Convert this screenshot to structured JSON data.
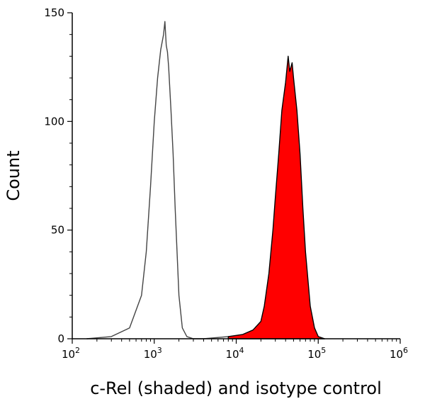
{
  "chart_data": {
    "type": "area",
    "title": "",
    "xlabel": "c-Rel (shaded) and isotype control",
    "ylabel": "Count",
    "x_scale": "log10",
    "xlim": [
      100,
      1000000
    ],
    "ylim": [
      0,
      150
    ],
    "grid": false,
    "legend": "none",
    "x_ticks": [
      {
        "value": 100,
        "base": "10",
        "exp": "2"
      },
      {
        "value": 1000,
        "base": "10",
        "exp": "3"
      },
      {
        "value": 10000,
        "base": "10",
        "exp": "4"
      },
      {
        "value": 100000,
        "base": "10",
        "exp": "5"
      },
      {
        "value": 1000000,
        "base": "10",
        "exp": "6"
      }
    ],
    "y_ticks": [
      0,
      50,
      100,
      150
    ],
    "series": [
      {
        "role": "isotype-control",
        "fill": "none",
        "stroke": "#444444",
        "x": [
          150,
          300,
          500,
          700,
          800,
          900,
          1000,
          1100,
          1200,
          1300,
          1350,
          1400,
          1450,
          1500,
          1600,
          1700,
          1800,
          2000,
          2200,
          2500,
          3000,
          4000,
          8000,
          15000
        ],
        "y": [
          0,
          1,
          5,
          20,
          40,
          70,
          100,
          120,
          133,
          140,
          146,
          135,
          132,
          125,
          105,
          85,
          60,
          20,
          5,
          1,
          0,
          0,
          1,
          1
        ]
      },
      {
        "role": "c-Rel",
        "fill": "#ff0000",
        "stroke": "#000000",
        "x": [
          8000,
          12000,
          16000,
          20000,
          22000,
          25000,
          28000,
          30000,
          33000,
          36000,
          40000,
          43000,
          45000,
          48000,
          50000,
          55000,
          60000,
          65000,
          70000,
          80000,
          90000,
          100000,
          120000
        ],
        "y": [
          1,
          2,
          4,
          8,
          15,
          30,
          50,
          65,
          85,
          105,
          118,
          130,
          123,
          127,
          120,
          105,
          85,
          60,
          40,
          15,
          5,
          1,
          0
        ]
      }
    ]
  }
}
